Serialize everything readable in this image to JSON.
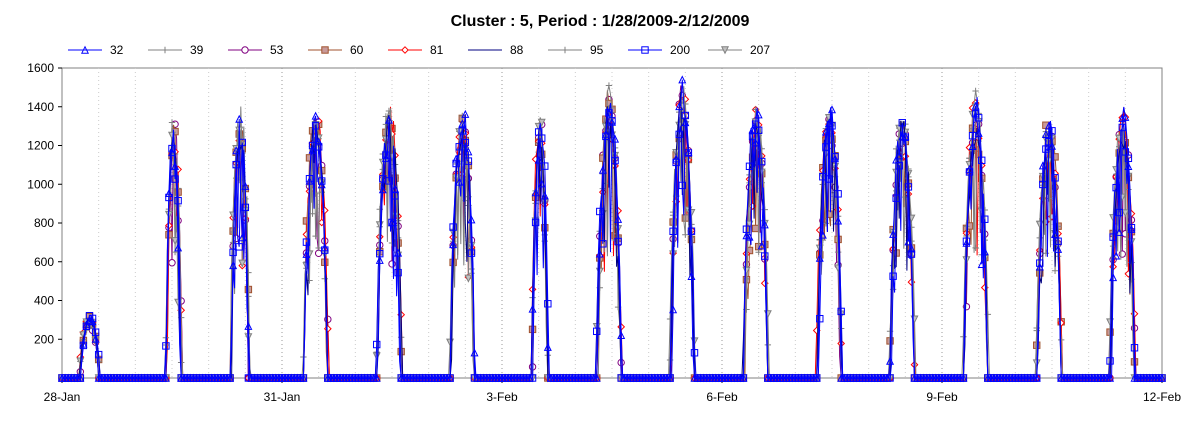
{
  "chart_data": {
    "type": "line",
    "title": "Cluster : 5, Period : 1/28/2009-2/12/2009",
    "xlabel": "",
    "ylabel": "",
    "xlim": [
      "28-Jan",
      "12-Feb"
    ],
    "ylim": [
      0,
      1600
    ],
    "x_tick_labels": [
      "28-Jan",
      "31-Jan",
      "3-Feb",
      "6-Feb",
      "9-Feb",
      "12-Feb"
    ],
    "y_tick_labels": [
      "200",
      "400",
      "600",
      "800",
      "1000",
      "1200",
      "1400",
      "1600"
    ],
    "grid": "dotted vertical at midnight/noon",
    "legend_position": "top",
    "x_unit": "days from 28-Jan 00:00",
    "daily_peaks": [
      {
        "day": 0,
        "peak": 330,
        "start": 0.25,
        "end": 0.5,
        "noise": "low"
      },
      {
        "day": 1,
        "peak": 1400,
        "start": 0.42,
        "end": 0.62
      },
      {
        "day": 2,
        "peak": 1430,
        "start": 0.3,
        "end": 0.55
      },
      {
        "day": 3,
        "peak": 1450,
        "start": 0.3,
        "end": 0.62
      },
      {
        "day": 4,
        "peak": 1450,
        "start": 0.3,
        "end": 0.62
      },
      {
        "day": 5,
        "peak": 1450,
        "start": 0.3,
        "end": 0.62
      },
      {
        "day": 6,
        "peak": 1390,
        "start": 0.42,
        "end": 0.62
      },
      {
        "day": 7,
        "peak": 1550,
        "start": 0.3,
        "end": 0.62
      },
      {
        "day": 8,
        "peak": 1560,
        "start": 0.3,
        "end": 0.62
      },
      {
        "day": 9,
        "peak": 1480,
        "start": 0.3,
        "end": 0.62
      },
      {
        "day": 10,
        "peak": 1490,
        "start": 0.3,
        "end": 0.62
      },
      {
        "day": 11,
        "peak": 1420,
        "start": 0.3,
        "end": 0.62
      },
      {
        "day": 12,
        "peak": 1500,
        "start": 0.3,
        "end": 0.62
      },
      {
        "day": 13,
        "peak": 1430,
        "start": 0.3,
        "end": 0.62
      },
      {
        "day": 14,
        "peak": 1440,
        "start": 0.3,
        "end": 0.62
      }
    ],
    "series": [
      {
        "name": "32",
        "color": "#0000ff",
        "marker": "triangle-up"
      },
      {
        "name": "39",
        "color": "#808080",
        "marker": "plus"
      },
      {
        "name": "53",
        "color": "#800080",
        "marker": "circle"
      },
      {
        "name": "60",
        "color": "#a0522d",
        "marker": "square-filled"
      },
      {
        "name": "81",
        "color": "#ff0000",
        "marker": "diamond"
      },
      {
        "name": "88",
        "color": "#000080",
        "marker": "none"
      },
      {
        "name": "95",
        "color": "#808080",
        "marker": "plus"
      },
      {
        "name": "200",
        "color": "#0000ff",
        "marker": "square"
      },
      {
        "name": "207",
        "color": "#808080",
        "marker": "triangle-down"
      }
    ]
  }
}
